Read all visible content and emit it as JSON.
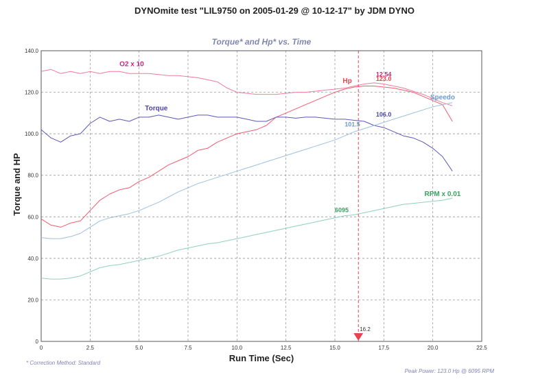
{
  "title": "DYNOmite test \"LIL9750 on 2005-01-29 @ 10-12-17\" by JDM DYNO",
  "footnote_left": "* Correction Method: Standard",
  "footnote_right": "Peak Power: 123.0 Hp @ 6095 RPM",
  "chart_data": {
    "type": "line",
    "title": "Torque* and Hp* vs. Time",
    "xlabel": "Run Time (Sec)",
    "ylabel": "Torque and HP",
    "xlim": [
      0,
      22.5
    ],
    "ylim": [
      0,
      140
    ],
    "x_ticks": [
      "0",
      "2.5",
      "5.0",
      "7.5",
      "10.0",
      "12.5",
      "15.0",
      "17.5",
      "20.0",
      "22.5"
    ],
    "y_ticks": [
      "0",
      "20.0",
      "40.0",
      "60.0",
      "80.0",
      "100.0",
      "120.0",
      "140.0"
    ],
    "grid": true,
    "cursor": {
      "x": 16.2,
      "label": "16.2",
      "color": "#e8434f"
    },
    "series": [
      {
        "name": "O2 x 10",
        "color": "#f07a9c",
        "x": [
          0,
          0.5,
          1,
          1.5,
          2,
          2.5,
          3,
          3.5,
          4,
          4.5,
          5,
          5.5,
          6,
          6.5,
          7,
          7.5,
          8,
          8.5,
          9,
          9.5,
          10,
          10.5,
          11,
          11.5,
          12,
          12.5,
          13,
          13.5,
          14,
          14.5,
          15,
          15.5,
          16,
          16.5,
          17,
          17.5,
          18,
          18.5,
          19,
          19.5,
          20,
          20.5,
          21
        ],
        "y": [
          130,
          131,
          129,
          130,
          129,
          130,
          129,
          130,
          130,
          129,
          129,
          129,
          128.5,
          128,
          128,
          127.5,
          127,
          126,
          125,
          122,
          120,
          119.5,
          119,
          119,
          119,
          119.5,
          120,
          120,
          120.5,
          121,
          121.5,
          122,
          123,
          124,
          124.5,
          124,
          123,
          122,
          120.5,
          119,
          117,
          115,
          113.5
        ]
      },
      {
        "name": "Hp",
        "color": "#f25a6e",
        "x": [
          0,
          0.5,
          1,
          1.5,
          2,
          2.5,
          3,
          3.5,
          4,
          4.5,
          5,
          5.5,
          6,
          6.5,
          7,
          7.5,
          8,
          8.5,
          9,
          9.5,
          10,
          10.5,
          11,
          11.5,
          12,
          12.5,
          13,
          13.5,
          14,
          14.5,
          15,
          15.5,
          16,
          16.5,
          17,
          17.5,
          18,
          18.5,
          19,
          19.5,
          20,
          20.5,
          21
        ],
        "y": [
          59,
          56,
          55,
          57,
          58,
          63,
          68,
          71,
          73,
          74,
          77,
          79,
          82,
          85,
          87,
          89,
          92,
          93,
          96,
          98,
          100,
          101,
          102,
          104,
          108,
          110,
          112,
          114,
          116,
          118,
          120,
          121.5,
          122.5,
          123,
          123,
          122.5,
          122,
          121,
          120,
          118,
          116,
          114,
          106
        ]
      },
      {
        "name": "Torque",
        "color": "#5b57b8",
        "x": [
          0,
          0.5,
          1,
          1.5,
          2,
          2.5,
          3,
          3.5,
          4,
          4.5,
          5,
          5.5,
          6,
          6.5,
          7,
          7.5,
          8,
          8.5,
          9,
          9.5,
          10,
          10.5,
          11,
          11.5,
          12,
          12.5,
          13,
          13.5,
          14,
          14.5,
          15,
          15.5,
          16,
          16.5,
          17,
          17.5,
          18,
          18.5,
          19,
          19.5,
          20,
          20.5,
          21
        ],
        "y": [
          102,
          98,
          96,
          99,
          100,
          105,
          108,
          106,
          107,
          106,
          108,
          108,
          109,
          108,
          107,
          108,
          109,
          109,
          108,
          108,
          108,
          107,
          106,
          106,
          108,
          108,
          107.5,
          108,
          108,
          107.5,
          107,
          107,
          106.5,
          106,
          104,
          103,
          101,
          99,
          98,
          96,
          93,
          89,
          82
        ]
      },
      {
        "name": "Speedo",
        "color": "#9cbfe0",
        "x": [
          0,
          0.5,
          1,
          1.5,
          2,
          2.5,
          3,
          3.5,
          4,
          4.5,
          5,
          5.5,
          6,
          6.5,
          7,
          7.5,
          8,
          8.5,
          9,
          9.5,
          10,
          10.5,
          11,
          11.5,
          12,
          12.5,
          13,
          13.5,
          14,
          14.5,
          15,
          15.5,
          16,
          16.5,
          17,
          17.5,
          18,
          18.5,
          19,
          19.5,
          20,
          20.5,
          21
        ],
        "y": [
          50,
          49.5,
          49.5,
          50.5,
          52,
          55,
          58,
          59.5,
          60.5,
          61.5,
          63,
          65,
          67,
          69.5,
          72,
          74,
          76,
          77.5,
          79,
          80.5,
          82,
          83.5,
          85,
          86.5,
          88,
          89.5,
          91,
          92.5,
          94,
          95.5,
          97,
          99,
          101,
          102.5,
          104,
          105.5,
          107,
          108.5,
          110,
          111.5,
          113,
          114,
          115
        ]
      },
      {
        "name": "RPM x 0.01",
        "color": "#8fcfc0",
        "x": [
          0,
          0.5,
          1,
          1.5,
          2,
          2.5,
          3,
          3.5,
          4,
          4.5,
          5,
          5.5,
          6,
          6.5,
          7,
          7.5,
          8,
          8.5,
          9,
          9.5,
          10,
          10.5,
          11,
          11.5,
          12,
          12.5,
          13,
          13.5,
          14,
          14.5,
          15,
          15.5,
          16,
          16.5,
          17,
          17.5,
          18,
          18.5,
          19,
          19.5,
          20,
          20.5,
          21
        ],
        "y": [
          30.5,
          30,
          30,
          30.5,
          31.5,
          33.5,
          35.5,
          36.5,
          37,
          38,
          39,
          40,
          41,
          42.5,
          44,
          45,
          46,
          47,
          47.5,
          48.5,
          49.5,
          50.5,
          51.5,
          52.5,
          53.5,
          54.5,
          55.5,
          56.5,
          57.5,
          58.5,
          59.5,
          60.5,
          61,
          62,
          63,
          64,
          65,
          66,
          66.5,
          67,
          67.5,
          68,
          69
        ]
      }
    ],
    "labels": [
      {
        "text": "O2 x 10",
        "x": 4.0,
        "y": 132.5,
        "color": "#c8267a",
        "kind": "series"
      },
      {
        "text": "Torque",
        "x": 5.3,
        "y": 111.3,
        "color": "#4b45a8",
        "kind": "series"
      },
      {
        "text": "Hp",
        "x": 15.4,
        "y": 124.5,
        "color": "#e8434f",
        "kind": "series"
      },
      {
        "text": "Speedo",
        "x": 20.5,
        "y": 116.5,
        "color": "#6a9ad0",
        "kind": "series"
      },
      {
        "text": "RPM x 0.01",
        "x": 20.5,
        "y": 70.0,
        "color": "#3aa060",
        "kind": "series"
      },
      {
        "text": "12.54",
        "x": 17.1,
        "y": 127.7,
        "color": "#c8267a",
        "kind": "value"
      },
      {
        "text": "123.0",
        "x": 17.1,
        "y": 125.5,
        "color": "#e8434f",
        "kind": "value"
      },
      {
        "text": "106.0",
        "x": 17.1,
        "y": 108.3,
        "color": "#4b45a8",
        "kind": "value"
      },
      {
        "text": "101.5",
        "x": 15.5,
        "y": 103.5,
        "color": "#6a9ad0",
        "kind": "value"
      },
      {
        "text": "6095",
        "x": 15.0,
        "y": 62.2,
        "color": "#3aa060",
        "kind": "value"
      }
    ]
  }
}
